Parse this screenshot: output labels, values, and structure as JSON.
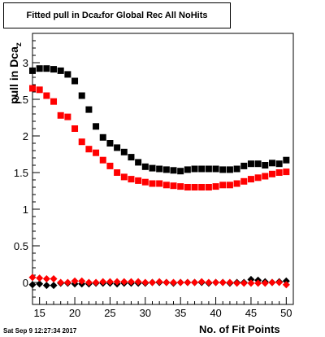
{
  "chart_data": {
    "type": "scatter",
    "title_main": "Fitted pull in Dca",
    "title_sub": "z",
    "title_rest": " for Global Rec All NoHits",
    "ylabel_main": "pull in Dca",
    "ylabel_sub": "z",
    "xlabel": "No. of Fit Points",
    "timestamp": "Sat Sep  9 12:27:34 2017",
    "xlim": [
      14,
      51
    ],
    "ylim": [
      -0.3,
      3.4
    ],
    "xticks": [
      15,
      20,
      25,
      30,
      35,
      40,
      45,
      50
    ],
    "yticks": [
      0,
      0.5,
      1,
      1.5,
      2,
      2.5,
      3
    ],
    "ytick_labels": [
      "0",
      "0.5",
      "1",
      "1.5",
      "2",
      "2.5",
      "3"
    ],
    "grid": false,
    "colors": {
      "black": "#000000",
      "red": "#ff0000"
    },
    "series": [
      {
        "marker": "square",
        "color": "#000000",
        "x": [
          14,
          15,
          16,
          17,
          18,
          19,
          20,
          21,
          22,
          23,
          24,
          25,
          26,
          27,
          28,
          29,
          30,
          31,
          32,
          33,
          34,
          35,
          36,
          37,
          38,
          39,
          40,
          41,
          42,
          43,
          44,
          45,
          46,
          47,
          48,
          49,
          50
        ],
        "y": [
          2.89,
          2.92,
          2.92,
          2.91,
          2.89,
          2.84,
          2.75,
          2.55,
          2.36,
          2.13,
          1.98,
          1.9,
          1.84,
          1.78,
          1.71,
          1.64,
          1.58,
          1.56,
          1.55,
          1.54,
          1.53,
          1.52,
          1.54,
          1.55,
          1.55,
          1.55,
          1.55,
          1.54,
          1.54,
          1.55,
          1.59,
          1.62,
          1.62,
          1.6,
          1.63,
          1.62,
          1.67
        ]
      },
      {
        "marker": "square",
        "color": "#ff0000",
        "x": [
          14,
          15,
          16,
          17,
          18,
          19,
          20,
          21,
          22,
          23,
          24,
          25,
          26,
          27,
          28,
          29,
          30,
          31,
          32,
          33,
          34,
          35,
          36,
          37,
          38,
          39,
          40,
          41,
          42,
          43,
          44,
          45,
          46,
          47,
          48,
          49,
          50
        ],
        "y": [
          2.65,
          2.63,
          2.55,
          2.47,
          2.28,
          2.26,
          2.1,
          1.92,
          1.82,
          1.77,
          1.67,
          1.59,
          1.5,
          1.44,
          1.41,
          1.39,
          1.37,
          1.35,
          1.35,
          1.33,
          1.32,
          1.31,
          1.3,
          1.3,
          1.3,
          1.3,
          1.31,
          1.33,
          1.33,
          1.35,
          1.38,
          1.41,
          1.43,
          1.45,
          1.48,
          1.5,
          1.51
        ]
      },
      {
        "marker": "diamond",
        "color": "#000000",
        "x": [
          14,
          15,
          16,
          17,
          18,
          19,
          20,
          21,
          22,
          23,
          24,
          25,
          26,
          27,
          28,
          29,
          30,
          31,
          32,
          33,
          34,
          35,
          36,
          37,
          38,
          39,
          40,
          41,
          42,
          43,
          44,
          45,
          46,
          47,
          48,
          49,
          50
        ],
        "y": [
          -0.03,
          -0.02,
          -0.04,
          -0.04,
          -0.01,
          -0.01,
          -0.02,
          -0.02,
          -0.02,
          -0.01,
          -0.01,
          -0.01,
          -0.02,
          -0.01,
          -0.01,
          -0.01,
          -0.01,
          0.0,
          0.0,
          0.0,
          -0.01,
          0.0,
          0.0,
          0.0,
          0.0,
          -0.01,
          0.0,
          0.0,
          -0.01,
          0.0,
          0.0,
          0.04,
          0.03,
          0.01,
          0.0,
          0.01,
          0.02
        ]
      },
      {
        "marker": "diamond",
        "color": "#ff0000",
        "x": [
          14,
          15,
          16,
          17,
          18,
          19,
          20,
          21,
          22,
          23,
          24,
          25,
          26,
          27,
          28,
          29,
          30,
          31,
          32,
          33,
          34,
          35,
          36,
          37,
          38,
          39,
          40,
          41,
          42,
          43,
          44,
          45,
          46,
          47,
          48,
          49,
          50
        ],
        "y": [
          0.07,
          0.06,
          0.05,
          0.05,
          0.0,
          0.0,
          0.02,
          0.02,
          0.0,
          0.0,
          0.01,
          0.01,
          0.01,
          0.01,
          0.01,
          0.01,
          0.0,
          0.0,
          0.01,
          0.0,
          0.0,
          0.0,
          0.0,
          0.0,
          0.01,
          0.0,
          0.0,
          0.0,
          0.0,
          -0.01,
          -0.01,
          -0.01,
          -0.01,
          -0.01,
          0.0,
          0.0,
          -0.03
        ]
      }
    ]
  }
}
